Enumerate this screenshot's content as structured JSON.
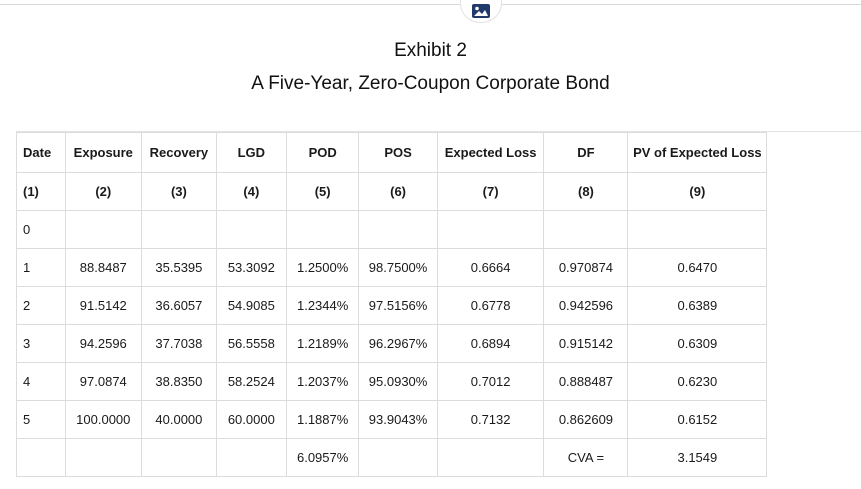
{
  "header": {
    "exhibit": "Exhibit 2",
    "title": "A Five-Year, Zero-Coupon Corporate Bond"
  },
  "table": {
    "headers": [
      "Date",
      "Exposure",
      "Recovery",
      "LGD",
      "POD",
      "POS",
      "Expected Loss",
      "DF",
      "PV of Expected Loss"
    ],
    "col_numbers": [
      "(1)",
      "(2)",
      "(3)",
      "(4)",
      "(5)",
      "(6)",
      "(7)",
      "(8)",
      "(9)"
    ],
    "rows": [
      [
        "0",
        "",
        "",
        "",
        "",
        "",
        "",
        "",
        ""
      ],
      [
        "1",
        "88.8487",
        "35.5395",
        "53.3092",
        "1.2500%",
        "98.7500%",
        "0.6664",
        "0.970874",
        "0.6470"
      ],
      [
        "2",
        "91.5142",
        "36.6057",
        "54.9085",
        "1.2344%",
        "97.5156%",
        "0.6778",
        "0.942596",
        "0.6389"
      ],
      [
        "3",
        "94.2596",
        "37.7038",
        "56.5558",
        "1.2189%",
        "96.2967%",
        "0.6894",
        "0.915142",
        "0.6309"
      ],
      [
        "4",
        "97.0874",
        "38.8350",
        "58.2524",
        "1.2037%",
        "95.0930%",
        "0.7012",
        "0.888487",
        "0.6230"
      ],
      [
        "5",
        "100.0000",
        "40.0000",
        "60.0000",
        "1.1887%",
        "93.9043%",
        "0.7132",
        "0.862609",
        "0.6152"
      ],
      [
        "",
        "",
        "",
        "",
        "6.0957%",
        "",
        "",
        "CVA =",
        "3.1549"
      ]
    ]
  }
}
